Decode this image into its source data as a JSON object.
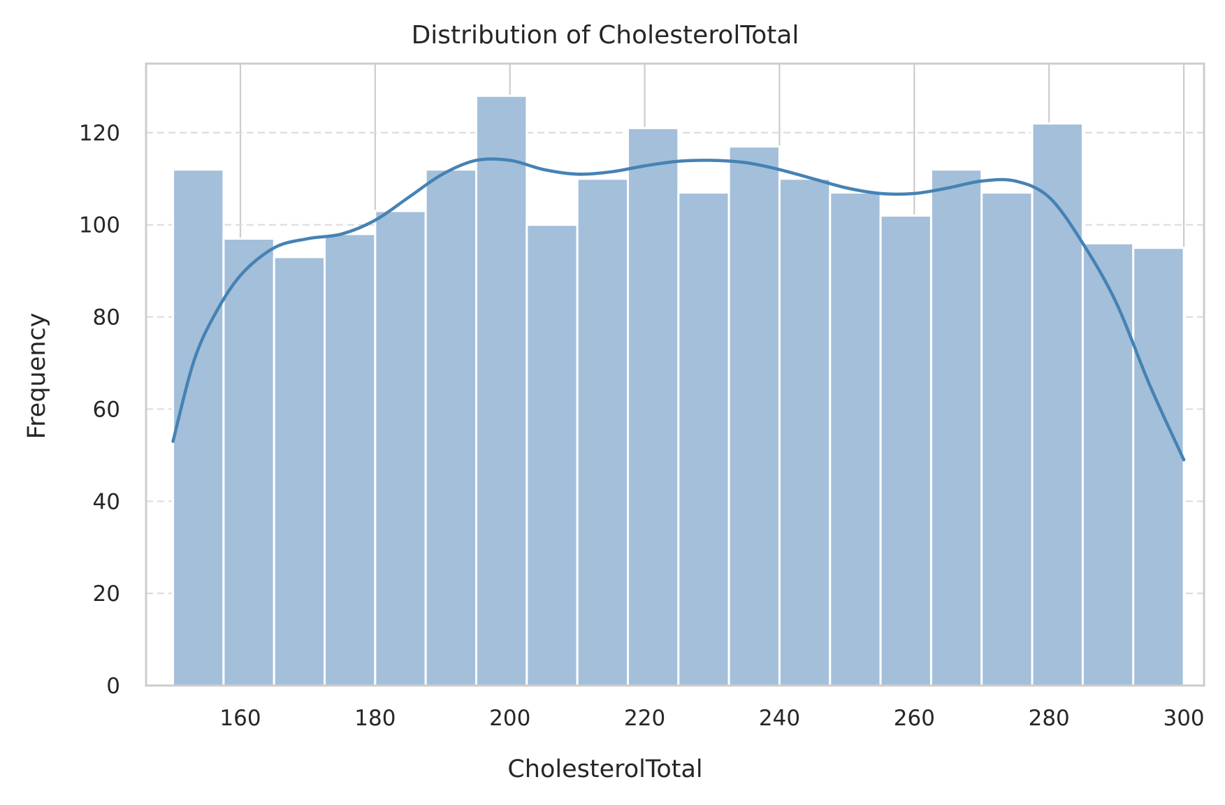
{
  "colors": {
    "bar_fill": "#a3bfda",
    "bar_edge": "#ffffff",
    "kde_line": "#4682b4",
    "grid": "#dddddd",
    "axes_frame": "#cccccc",
    "vgrid": "#cccccc",
    "text": "#262626"
  },
  "chart_data": {
    "type": "bar",
    "subtype": "histogram",
    "title": "Distribution of CholesterolTotal",
    "xlabel": "CholesterolTotal",
    "ylabel": "Frequency",
    "xlim": [
      146,
      303
    ],
    "ylim": [
      0,
      135
    ],
    "xticks": [
      160,
      180,
      200,
      220,
      240,
      260,
      280,
      300
    ],
    "yticks": [
      0,
      20,
      40,
      60,
      80,
      100,
      120
    ],
    "grid": {
      "y": "dashed",
      "x": "solid"
    },
    "bins": {
      "edges": [
        150.0,
        157.5,
        165.0,
        172.5,
        180.0,
        187.5,
        195.0,
        202.5,
        210.0,
        217.5,
        225.0,
        232.5,
        240.0,
        247.5,
        255.0,
        262.5,
        270.0,
        277.5,
        285.0,
        292.5,
        300.0
      ],
      "values": [
        112,
        97,
        93,
        98,
        103,
        112,
        128,
        100,
        110,
        121,
        107,
        117,
        110,
        107,
        102,
        112,
        107,
        122,
        96,
        95
      ]
    },
    "kde": {
      "x": [
        150,
        153,
        156,
        160,
        165,
        170,
        175,
        180,
        185,
        190,
        195,
        200,
        205,
        210,
        215,
        220,
        225,
        230,
        235,
        240,
        245,
        250,
        255,
        260,
        265,
        270,
        275,
        280,
        285,
        290,
        295,
        300
      ],
      "y": [
        53,
        70,
        80,
        89,
        95,
        97,
        98,
        101,
        106,
        111,
        114,
        114,
        112,
        111,
        111.5,
        112.8,
        113.8,
        114,
        113.5,
        112,
        110,
        108,
        106.8,
        106.8,
        108,
        109.5,
        109.5,
        106,
        96,
        83,
        65,
        49
      ]
    }
  }
}
